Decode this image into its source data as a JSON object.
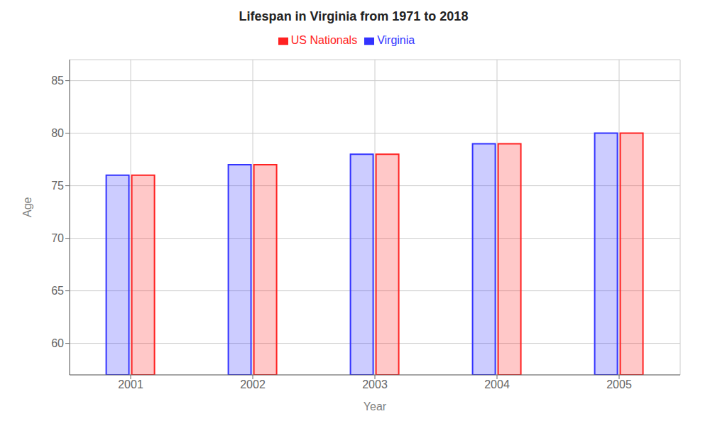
{
  "chart_data": {
    "type": "bar",
    "title": "Lifespan in Virginia from 1971 to 2018",
    "xlabel": "Year",
    "ylabel": "Age",
    "categories": [
      "2001",
      "2002",
      "2003",
      "2004",
      "2005"
    ],
    "series": [
      {
        "name": "Virginia",
        "color": "#3333ff",
        "values": [
          76,
          77,
          78,
          79,
          80
        ]
      },
      {
        "name": "US Nationals",
        "color": "#ff2222",
        "values": [
          76,
          77,
          78,
          79,
          80
        ]
      }
    ],
    "ylim": [
      57,
      87
    ],
    "yticks": [
      60,
      65,
      70,
      75,
      80,
      85
    ],
    "grid": true,
    "legend": "top"
  }
}
